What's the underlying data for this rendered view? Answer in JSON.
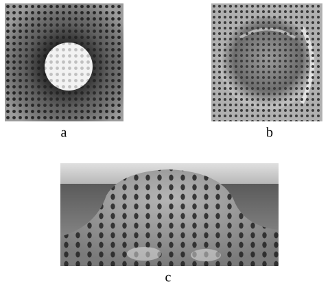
{
  "figure": {
    "panels": [
      {
        "label": "a"
      },
      {
        "label": "b"
      },
      {
        "label": "c"
      }
    ]
  }
}
